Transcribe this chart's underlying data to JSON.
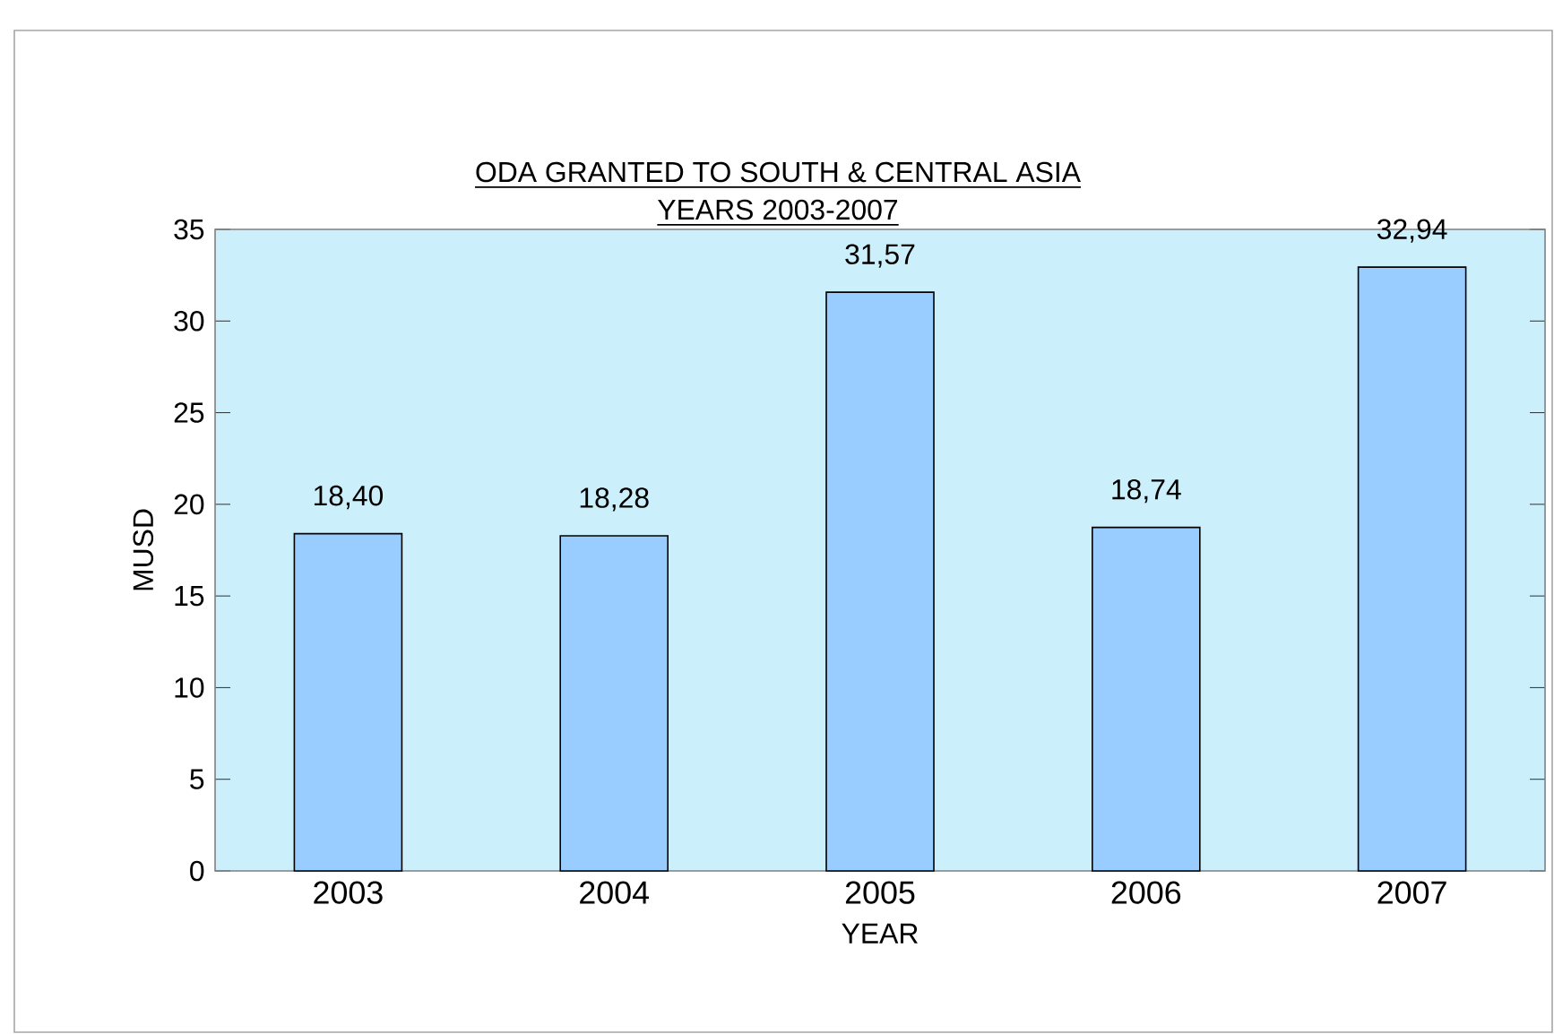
{
  "chart_data": {
    "type": "bar",
    "title": "ODA GRANTED TO SOUTH & CENTRAL ASIA",
    "subtitle": "YEARS 2003-2007",
    "xlabel": "YEAR",
    "ylabel": "MUSD",
    "categories": [
      "2003",
      "2004",
      "2005",
      "2006",
      "2007"
    ],
    "values": [
      18.4,
      18.28,
      31.57,
      18.74,
      32.94
    ],
    "value_labels": [
      "18,40",
      "18,28",
      "31,57",
      "18,74",
      "32,94"
    ],
    "color": "#99ccff",
    "ylim": [
      0,
      35
    ],
    "yticks": [
      0,
      5,
      10,
      15,
      20,
      25,
      30,
      35
    ],
    "grid": false
  }
}
